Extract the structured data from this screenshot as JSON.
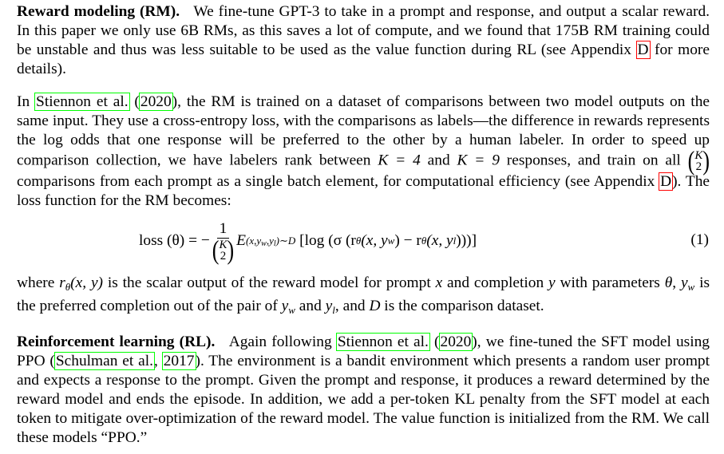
{
  "rm": {
    "heading": "Reward modeling (RM).",
    "p1": "We fine-tune GPT-3 to take in a prompt and response, and output a scalar reward. In this paper we only use 6B RMs, as this saves a lot of compute, and we found that 175B RM training could be unstable and thus was less suitable to be used as the value function during RL (see Appendix ",
    "p1_ref": "D",
    "p1_end": " for more details).",
    "p2_start": "In ",
    "p2_ref_author": "Stiennon et al.",
    "p2_ref_year_open": " (",
    "p2_ref_year": "2020",
    "p2_ref_year_close": ")",
    "p2_a": ", the RM is trained on a dataset of comparisons between two model outputs on the same input. They use a cross-entropy loss, with the comparisons as labels—the difference in rewards represents the log odds that one response will be preferred to the other by a human labeler. In order to speed up comparison collection, we have labelers rank between ",
    "p2_k1": "K = 4",
    "p2_b": " and ",
    "p2_k2": "K = 9",
    "p2_c": " responses, and train on all ",
    "p2_binom_top": "K",
    "p2_binom_bot": "2",
    "p2_d": " comparisons from each prompt as a single batch element, for computational efficiency (see Appendix ",
    "p2_ref2": "D",
    "p2_e": "). The loss function for the RM becomes:",
    "eq_lhs": "loss (θ) = −",
    "eq_frac_num": "1",
    "eq_binom_top": "K",
    "eq_binom_bot": "2",
    "eq_E": "E",
    "eq_E_sub": "(x,y",
    "eq_E_sub_w": "w",
    "eq_E_sub_mid": ",y",
    "eq_E_sub_l": "l",
    "eq_E_sub_end": ")∼D",
    "eq_body_a": "[log (σ (r",
    "eq_theta1": "θ",
    "eq_body_b": " (x, y",
    "eq_w": "w",
    "eq_body_c": ") − r",
    "eq_theta2": "θ",
    "eq_body_d": " (x, y",
    "eq_l": "l",
    "eq_body_e": ")))]",
    "eq_number": "(1)",
    "p3_a": "where ",
    "p3_r": "r",
    "p3_theta": "θ",
    "p3_rxy": "(x, y)",
    "p3_b": " is the scalar output of the reward model for prompt ",
    "p3_x": "x",
    "p3_c": " and completion ",
    "p3_y": "y",
    "p3_d": " with parameters ",
    "p3_theta2": "θ",
    "p3_e": ", ",
    "p3_yw": "y",
    "p3_yw_sub": "w",
    "p3_f": " is the preferred completion out of the pair of ",
    "p3_yw2": "y",
    "p3_yw2_sub": "w",
    "p3_g": " and ",
    "p3_yl": "y",
    "p3_yl_sub": "l",
    "p3_h": ", and ",
    "p3_D": "D",
    "p3_i": " is the comparison dataset."
  },
  "rl": {
    "heading": "Reinforcement learning (RL).",
    "a": "Again following ",
    "ref1_author": "Stiennon et al.",
    "ref1_open": " (",
    "ref1_year": "2020",
    "ref1_close": ")",
    "b": ", we fine-tuned the SFT model using PPO (",
    "ref2_author": "Schulman et al.",
    "ref2_sep": ", ",
    "ref2_year": "2017",
    "c": "). The environment is a bandit environment which presents a random user prompt and expects a response to the prompt. Given the prompt and response, it produces a reward determined by the reward model and ends the episode. In addition, we add a per-token KL penalty from the SFT model at each token to mitigate over-optimization of the reward model. The value function is initialized from the RM. We call these models “PPO.”"
  }
}
